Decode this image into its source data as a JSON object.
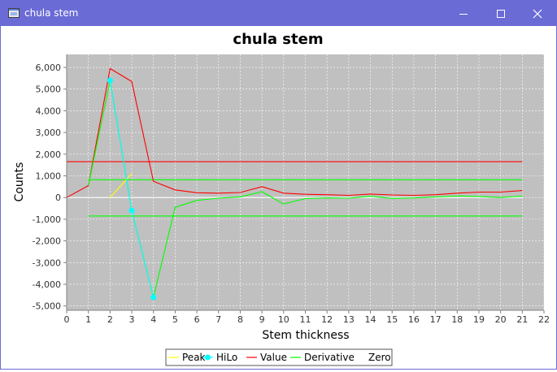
{
  "window": {
    "title": "chula stem",
    "title_bar_color": "#6b6bd6",
    "icons": [
      "java-app-icon",
      "minimize-icon",
      "maximize-icon",
      "close-icon"
    ]
  },
  "chart_data": {
    "type": "line",
    "title": "chula stem",
    "xlabel": "Stem thickness",
    "ylabel": "Counts",
    "xlim": [
      0,
      22
    ],
    "ylim": [
      -5200,
      6600
    ],
    "xticks": [
      0,
      1,
      2,
      3,
      4,
      5,
      6,
      7,
      8,
      9,
      10,
      11,
      12,
      13,
      14,
      15,
      16,
      17,
      18,
      19,
      20,
      21,
      22
    ],
    "yticks": [
      -5000,
      -4000,
      -3000,
      -2000,
      -1000,
      0,
      1000,
      2000,
      3000,
      4000,
      5000,
      6000
    ],
    "ytick_labels": [
      "-5,000",
      "-4,000",
      "-3,000",
      "-2,000",
      "-1,000",
      "0",
      "1,000",
      "2,000",
      "3,000",
      "4,000",
      "5,000",
      "6,000"
    ],
    "grid": true,
    "plot_background": "#c0c0c0",
    "legend_position": "bottom",
    "series": [
      {
        "name": "Peak",
        "color": "#ffff00",
        "marker": "none",
        "x": [
          2,
          3
        ],
        "y": [
          0,
          1100
        ]
      },
      {
        "name": "HiLo",
        "color": "#00ffff",
        "marker": "circle",
        "x": [
          2,
          3,
          4
        ],
        "y": [
          5400,
          -600,
          -4600
        ]
      },
      {
        "name": "Value",
        "color": "#ff0000",
        "marker": "none",
        "x": [
          0,
          1,
          2,
          3,
          4,
          5,
          6,
          7,
          8,
          9,
          10,
          11,
          12,
          13,
          14,
          15,
          16,
          17,
          18,
          19,
          20,
          21
        ],
        "y": [
          0,
          550,
          5950,
          5350,
          750,
          350,
          220,
          200,
          230,
          500,
          200,
          150,
          130,
          100,
          160,
          120,
          100,
          130,
          200,
          250,
          250,
          320
        ]
      },
      {
        "name": "Derivative",
        "color": "#00ff00",
        "marker": "none",
        "x": [
          1,
          2,
          3,
          4,
          5,
          6,
          7,
          8,
          9,
          10,
          11,
          12,
          13,
          14,
          15,
          16,
          17,
          18,
          19,
          20,
          21
        ],
        "y": [
          550,
          5400,
          -600,
          -4600,
          -450,
          -130,
          -30,
          30,
          270,
          -300,
          -50,
          -20,
          -30,
          60,
          -40,
          -20,
          30,
          70,
          50,
          0,
          70
        ]
      },
      {
        "name": "Zero",
        "color": "#ffffff",
        "marker": "none",
        "x": [
          0,
          21
        ],
        "y": [
          0,
          0
        ]
      }
    ],
    "reference_lines": [
      {
        "color": "#ff0000",
        "x": [
          0,
          21
        ],
        "y": [
          1650,
          1650
        ]
      },
      {
        "color": "#00ff00",
        "x": [
          1,
          21
        ],
        "y": [
          820,
          820
        ]
      },
      {
        "color": "#00ff00",
        "x": [
          1,
          21
        ],
        "y": [
          -850,
          -850
        ]
      }
    ]
  }
}
